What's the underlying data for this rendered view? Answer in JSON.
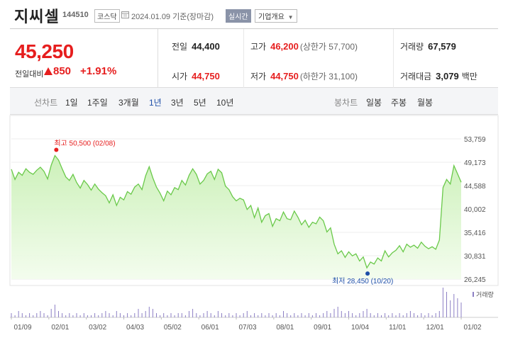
{
  "header": {
    "stock_name": "지씨셀",
    "stock_code": "144510",
    "market": "코스닥",
    "date_text": "2024.01.09  기준(장마감)",
    "realtime_label": "실시간",
    "corp_overview_label": "기업개요"
  },
  "price": {
    "current": "45,250",
    "change_label": "전일대비",
    "change_value": "850",
    "change_pct": "+1.91%",
    "direction": "up"
  },
  "stats": {
    "prev_close": {
      "label": "전일",
      "value": "44,400"
    },
    "open": {
      "label": "시가",
      "value": "44,750"
    },
    "high": {
      "label": "고가",
      "value": "46,200",
      "sub": "(상한가 57,700)"
    },
    "low": {
      "label": "저가",
      "value": "44,750",
      "sub": "(하한가 31,100)"
    },
    "volume": {
      "label": "거래량",
      "value": "67,579"
    },
    "trade_value": {
      "label": "거래대금",
      "value": "3,079",
      "unit": "백만"
    }
  },
  "line_tabs": {
    "label": "선차트",
    "items": [
      "1일",
      "1주일",
      "3개월",
      "1년",
      "3년",
      "5년",
      "10년"
    ],
    "active": "1년"
  },
  "candle_tabs": {
    "label": "봉차트",
    "items": [
      "일봉",
      "주봉",
      "월봉"
    ]
  },
  "colors": {
    "accent_red": "#e61e1e",
    "accent_blue": "#1e4fa8",
    "line": "#6ac94a",
    "volume": "#8c7fc4"
  },
  "chart_data": {
    "type": "area",
    "x_tick_labels": [
      "01/09",
      "02/01",
      "03/02",
      "04/03",
      "05/02",
      "06/01",
      "07/03",
      "08/01",
      "09/01",
      "10/04",
      "11/01",
      "12/01",
      "01/02"
    ],
    "y_ticks": [
      53759,
      49173,
      44588,
      40002,
      35416,
      30831,
      26245
    ],
    "y_tick_labels": [
      "53,759",
      "49,173",
      "44,588",
      "40,002",
      "35,416",
      "30,831",
      "26,245"
    ],
    "ylim": [
      26245,
      53759
    ],
    "high_annotation": "최고 50,500 (02/08)",
    "low_annotation": "최저 28,450 (10/20)",
    "high_value": 50500,
    "low_value": 28450,
    "volume_legend": "거래량",
    "prices": [
      47800,
      45800,
      47200,
      46600,
      47900,
      47200,
      46800,
      47600,
      48200,
      47400,
      45900,
      48600,
      50500,
      49600,
      47900,
      46300,
      45600,
      46800,
      45200,
      44100,
      45600,
      44800,
      43700,
      44900,
      43900,
      43200,
      42600,
      41200,
      42800,
      40700,
      42300,
      41800,
      43400,
      42900,
      44300,
      44900,
      43800,
      46500,
      48300,
      46100,
      44300,
      43100,
      41600,
      43500,
      42800,
      44200,
      43800,
      45600,
      44700,
      46600,
      47900,
      46800,
      44900,
      45600,
      46900,
      47400,
      45800,
      47800,
      47100,
      44500,
      43800,
      42400,
      41600,
      42100,
      41800,
      39900,
      40700,
      38300,
      40200,
      37400,
      38700,
      39100,
      36600,
      38100,
      37700,
      39400,
      38100,
      37900,
      39600,
      38400,
      36900,
      37800,
      36400,
      37400,
      37100,
      38400,
      37700,
      35500,
      36300,
      33100,
      31200,
      31800,
      30500,
      31600,
      30800,
      31200,
      29800,
      30600,
      28450,
      29600,
      29200,
      30400,
      29800,
      31800,
      30600,
      31400,
      31900,
      32800,
      31600,
      33100,
      32500,
      32900,
      32300,
      33500,
      32700,
      32200,
      32600,
      32100,
      33900,
      44200,
      45800,
      44900,
      48500,
      46900,
      45250
    ],
    "volumes": [
      2,
      1,
      3,
      2,
      1,
      2,
      1,
      2,
      3,
      2,
      1,
      4,
      6,
      3,
      2,
      1,
      2,
      1,
      2,
      1,
      2,
      1,
      1,
      2,
      1,
      2,
      3,
      2,
      1,
      3,
      2,
      1,
      2,
      1,
      2,
      4,
      2,
      3,
      5,
      4,
      2,
      1,
      2,
      1,
      2,
      1,
      2,
      2,
      1,
      3,
      4,
      2,
      1,
      2,
      3,
      2,
      1,
      3,
      2,
      1,
      2,
      1,
      2,
      1,
      2,
      3,
      1,
      2,
      1,
      2,
      1,
      2,
      1,
      2,
      1,
      3,
      2,
      1,
      2,
      1,
      2,
      1,
      2,
      1,
      2,
      1,
      2,
      3,
      2,
      4,
      5,
      3,
      2,
      3,
      2,
      1,
      2,
      3,
      4,
      2,
      1,
      2,
      1,
      2,
      1,
      2,
      1,
      2,
      1,
      2,
      3,
      2,
      1,
      2,
      1,
      2,
      1,
      2,
      3,
      14,
      12,
      8,
      11,
      9,
      7
    ]
  }
}
